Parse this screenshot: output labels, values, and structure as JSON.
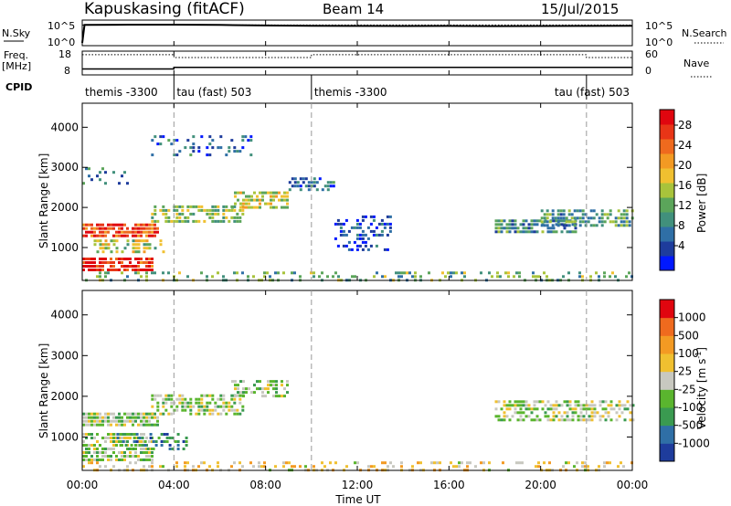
{
  "header": {
    "title": "Kapuskasing (fitACF)",
    "beam": "Beam 14",
    "date": "15/Jul/2015"
  },
  "chart_data": [
    {
      "type": "line",
      "panel": "noise",
      "ylabel": "N.Sky",
      "y2label": "N.Search",
      "yticks": [
        "10^5",
        "10^0"
      ],
      "y2ticks": [
        "10^5",
        "10^0"
      ],
      "scale": "log",
      "series": [
        {
          "style": "solid",
          "x": [
            0,
            0.1,
            2,
            4,
            6,
            8,
            10,
            12,
            14,
            16,
            18,
            20,
            22,
            24
          ],
          "values": [
            1,
            30000,
            35000,
            36000,
            30000,
            22000,
            18000,
            17000,
            16000,
            17000,
            15000,
            16000,
            17000,
            18000
          ]
        },
        {
          "style": "dotted",
          "x": [
            0,
            24
          ],
          "values": [
            28000,
            28000
          ]
        }
      ]
    },
    {
      "type": "line",
      "panel": "frequency",
      "ylabel": "Freq.",
      "yunit": "[MHz]",
      "yticks": [
        "18",
        "8"
      ],
      "y2ticks": [
        "60",
        "0"
      ],
      "y2label": "Nave",
      "series": [
        {
          "style": "solid",
          "x": [
            0,
            4,
            4,
            24
          ],
          "values": [
            10.5,
            10.5,
            11.2,
            11.2
          ]
        },
        {
          "style": "dotted",
          "x": [
            0,
            4,
            4,
            10,
            10,
            22,
            22,
            24
          ],
          "values": [
            16.5,
            16.5,
            15.3,
            15.3,
            16.5,
            16.5,
            15.3,
            15.3
          ]
        }
      ]
    },
    {
      "type": "table",
      "panel": "cpid",
      "ylabel": "CPID",
      "segments": [
        {
          "start": 0,
          "end": 4,
          "label": "themis -3300"
        },
        {
          "start": 4,
          "end": 10,
          "label": "tau (fast) 503"
        },
        {
          "start": 10,
          "end": 22,
          "label": "themis -3300"
        },
        {
          "start": 22,
          "end": 24,
          "label": "tau (fast) 503"
        }
      ],
      "label_positions": [
        "left",
        "left",
        "left",
        "right"
      ]
    },
    {
      "type": "heatmap",
      "panel": "power",
      "ylabel": "Slant Range [km]",
      "yticks": [
        1000,
        2000,
        3000,
        4000
      ],
      "ylim": [
        180,
        4600
      ],
      "colorbar": {
        "label": "Power [dB]",
        "ticks": [
          "4",
          "8",
          "12",
          "16",
          "20",
          "24",
          "28"
        ],
        "colors": [
          "#0018ff",
          "#1e3c9c",
          "#2f6fa6",
          "#41907c",
          "#5ba55a",
          "#a8c33b",
          "#f0c030",
          "#f39a23",
          "#ef6a1e",
          "#e83517",
          "#e0060f"
        ]
      },
      "regions": [
        {
          "x0": 0.0,
          "x1": 3.3,
          "y0": 1250,
          "y1": 1600,
          "value": 0.85,
          "density": 0.8
        },
        {
          "x0": 0.0,
          "x1": 3.0,
          "y0": 450,
          "y1": 750,
          "value": 0.9,
          "density": 0.75
        },
        {
          "x0": 0.5,
          "x1": 3.5,
          "y0": 900,
          "y1": 1200,
          "value": 0.5,
          "density": 0.5
        },
        {
          "x0": 0.0,
          "x1": 2.0,
          "y0": 2600,
          "y1": 3000,
          "value": 0.25,
          "density": 0.2
        },
        {
          "x0": 3.0,
          "x1": 7.0,
          "y0": 1600,
          "y1": 2050,
          "value": 0.45,
          "density": 0.6
        },
        {
          "x0": 6.5,
          "x1": 9.0,
          "y0": 2000,
          "y1": 2400,
          "value": 0.55,
          "density": 0.6
        },
        {
          "x0": 9.0,
          "x1": 11.0,
          "y0": 2450,
          "y1": 2750,
          "value": 0.2,
          "density": 0.5
        },
        {
          "x0": 11.0,
          "x1": 13.5,
          "y0": 900,
          "y1": 1800,
          "value": 0.15,
          "density": 0.35
        },
        {
          "x0": 18.0,
          "x1": 21.5,
          "y0": 1400,
          "y1": 1700,
          "value": 0.3,
          "density": 0.7
        },
        {
          "x0": 20.0,
          "x1": 24.0,
          "y0": 1550,
          "y1": 1950,
          "value": 0.35,
          "density": 0.6
        },
        {
          "x0": 3.0,
          "x1": 7.5,
          "y0": 3300,
          "y1": 3800,
          "value": 0.2,
          "density": 0.2
        },
        {
          "x0": 0.0,
          "x1": 24.0,
          "y0": 200,
          "y1": 400,
          "value": 0.4,
          "density": 0.25
        }
      ]
    },
    {
      "type": "heatmap",
      "panel": "velocity",
      "ylabel": "Slant Range [km]",
      "yticks": [
        1000,
        2000,
        3000,
        4000
      ],
      "ylim": [
        180,
        4600
      ],
      "xlabel": "Time UT",
      "xticks": [
        "00:00",
        "04:00",
        "08:00",
        "12:00",
        "16:00",
        "20:00",
        "00:00"
      ],
      "xlim": [
        0,
        24
      ],
      "colorbar": {
        "label": "Velocity [m s",
        "unit_sup": "-1",
        "label_end": "]",
        "ticks": [
          "1000",
          "500",
          "100",
          "25",
          "-25",
          "-100",
          "-500",
          "-1000"
        ],
        "colors": [
          "#1e3c9c",
          "#2f6fa6",
          "#3a9a50",
          "#5ab52e",
          "#c8c8c0",
          "#f0c030",
          "#f39a23",
          "#ef6a1e",
          "#e0060f"
        ]
      },
      "regions": [
        {
          "x0": 0.0,
          "x1": 3.3,
          "y0": 1250,
          "y1": 1600,
          "value": 0.45,
          "density": 0.8
        },
        {
          "x0": 0.0,
          "x1": 3.0,
          "y0": 450,
          "y1": 1100,
          "value": 0.45,
          "density": 0.7
        },
        {
          "x0": 1.5,
          "x1": 4.5,
          "y0": 700,
          "y1": 1100,
          "value": 0.25,
          "density": 0.5
        },
        {
          "x0": 3.0,
          "x1": 7.0,
          "y0": 1600,
          "y1": 2050,
          "value": 0.45,
          "density": 0.6
        },
        {
          "x0": 6.5,
          "x1": 9.0,
          "y0": 2000,
          "y1": 2400,
          "value": 0.45,
          "density": 0.5
        },
        {
          "x0": 18.0,
          "x1": 24.0,
          "y0": 1400,
          "y1": 1900,
          "value": 0.45,
          "density": 0.6
        },
        {
          "x0": 0.0,
          "x1": 24.0,
          "y0": 200,
          "y1": 400,
          "value": 0.6,
          "density": 0.3
        }
      ]
    }
  ],
  "axes": {
    "dashed_times": [
      4,
      10,
      22
    ]
  }
}
